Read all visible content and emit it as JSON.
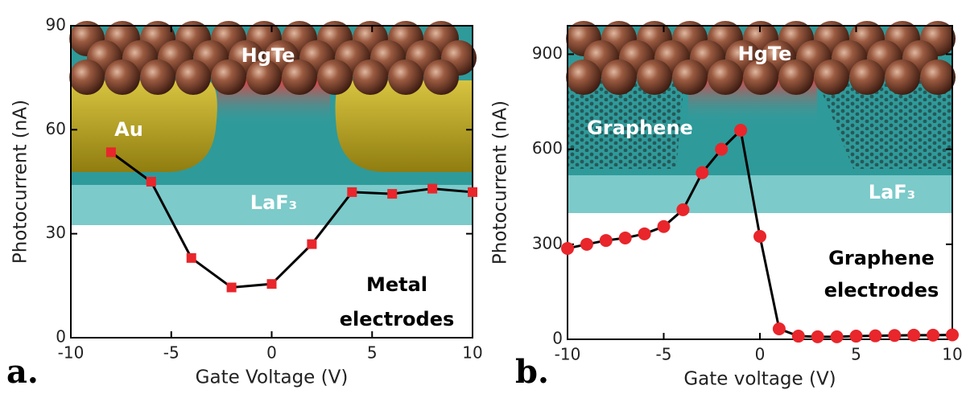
{
  "chart_data": [
    {
      "type": "line",
      "panel_label": "a.",
      "x_label": "Gate Voltage (V)",
      "y_label": "Photocurrent (nA)",
      "x": [
        -8,
        -6,
        -4,
        -2,
        0,
        2,
        4,
        6,
        8,
        10
      ],
      "series": [
        {
          "color": "#e8262b",
          "line_color": "#000000",
          "marker": "square",
          "values": [
            53.5,
            45,
            23,
            14.5,
            15.5,
            27,
            42,
            41.5,
            43,
            42
          ]
        }
      ],
      "xlim": [
        -10,
        10
      ],
      "ylim": [
        0,
        90
      ],
      "xticks": [
        -10,
        -5,
        0,
        5,
        10
      ],
      "yticks": [
        0,
        30,
        60,
        90
      ],
      "annotations": [
        "HgTe",
        "Au",
        "LaF₃",
        "Metal",
        "electrodes"
      ]
    },
    {
      "type": "line",
      "panel_label": "b.",
      "x_label": "Gate voltage (V)",
      "y_label": "Photocurrent (nA)",
      "x": [
        -10,
        -9,
        -8,
        -7,
        -6,
        -5,
        -4,
        -3,
        -2,
        -1,
        0,
        1,
        2,
        3,
        4,
        5,
        6,
        7,
        8,
        9,
        10
      ],
      "series": [
        {
          "color": "#e8262b",
          "line_color": "#000000",
          "marker": "circle",
          "values": [
            287,
            300,
            312,
            320,
            333,
            356,
            409,
            526,
            600,
            660,
            325,
            33,
            10,
            8,
            8,
            10,
            11,
            12,
            13,
            13,
            14
          ]
        }
      ],
      "xlim": [
        -10,
        10
      ],
      "ylim": [
        0,
        990
      ],
      "xticks": [
        -10,
        -5,
        0,
        5,
        10
      ],
      "yticks": [
        0,
        300,
        600,
        900
      ],
      "annotations": [
        "HgTe",
        "Graphene",
        "LaF₃",
        "Graphene",
        "electrodes"
      ]
    }
  ]
}
